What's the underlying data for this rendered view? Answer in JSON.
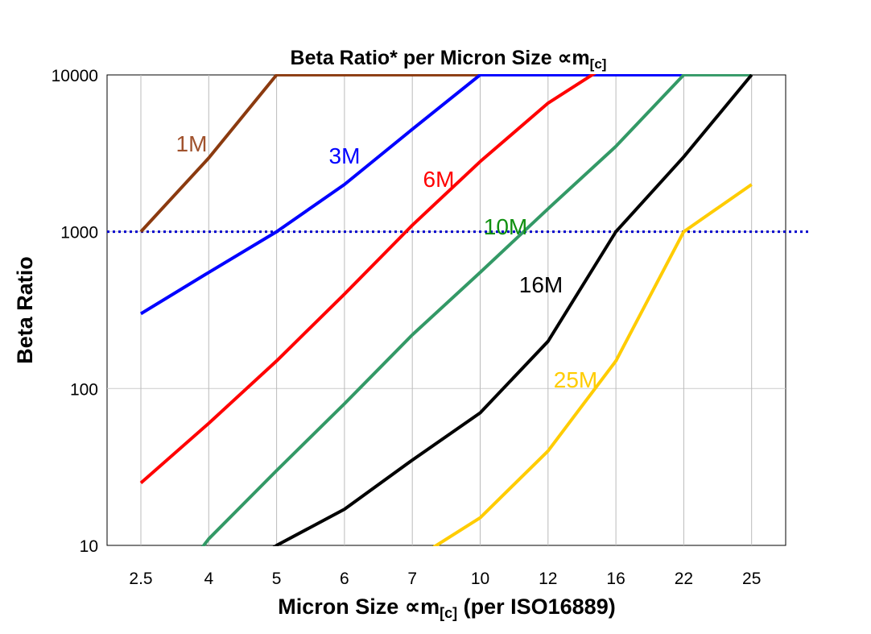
{
  "chart_data": {
    "type": "line",
    "title": "Beta Ratio* per Micron Size ∝m",
    "title_sub": "[c]",
    "xlabel": "Micron Size ∝m",
    "xlabel_sub": "[c]",
    "xlabel_suffix": " (per ISO16889)",
    "ylabel": "Beta Ratio",
    "yscale": "log",
    "ylim": [
      10,
      10000
    ],
    "yticks": [
      "10",
      "100",
      "1000",
      "10000"
    ],
    "categories": [
      "2.5",
      "4",
      "5",
      "6",
      "7",
      "10",
      "12",
      "16",
      "22",
      "25"
    ],
    "grid": true,
    "reference_line": {
      "y": 1000,
      "color": "#0000CC",
      "style": "dotted"
    },
    "series": [
      {
        "name": "1M",
        "color": "#8B3A0F",
        "label_color": "#A0522D",
        "values": [
          1000,
          2950,
          10000,
          10000,
          10000,
          10000,
          null,
          null,
          null,
          null
        ]
      },
      {
        "name": "3M",
        "color": "#0000FF",
        "label_color": "#0000FF",
        "values": [
          300,
          550,
          1000,
          2000,
          4500,
          10000,
          10000,
          10000,
          10000,
          null
        ]
      },
      {
        "name": "6M",
        "color": "#FF0000",
        "label_color": "#FF0000",
        "values": [
          25,
          60,
          150,
          400,
          1100,
          2800,
          6600,
          12500,
          null,
          null
        ]
      },
      {
        "name": "10M",
        "color": "#339966",
        "label_color": "#109010",
        "values": [
          3,
          11,
          30,
          80,
          220,
          550,
          1400,
          3500,
          10000,
          10000
        ]
      },
      {
        "name": "16M",
        "color": "#000000",
        "label_color": "#000000",
        "values": [
          null,
          5,
          10,
          17,
          35,
          70,
          200,
          1000,
          3000,
          10000
        ]
      },
      {
        "name": "25M",
        "color": "#FFCC00",
        "label_color": "#FFCC00",
        "values": [
          null,
          null,
          null,
          null,
          8,
          15,
          40,
          150,
          1000,
          2000
        ]
      }
    ]
  }
}
